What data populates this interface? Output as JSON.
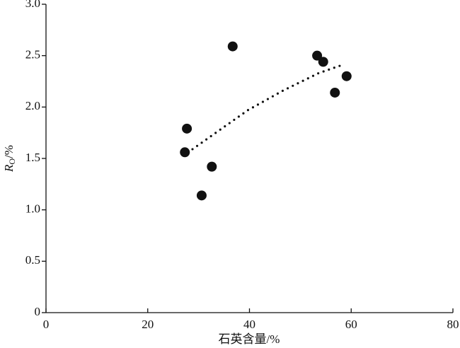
{
  "chart_data": {
    "type": "scatter",
    "xlabel": "石英含量/%",
    "ylabel": {
      "main": "R",
      "sub": "O",
      "unit": "/%"
    },
    "x": [
      27.3,
      27.7,
      30.6,
      32.6,
      36.7,
      53.3,
      54.5,
      59.1,
      56.8
    ],
    "values": [
      1.56,
      1.79,
      1.14,
      1.42,
      2.59,
      2.5,
      2.44,
      2.3,
      2.14
    ],
    "color": "#111111",
    "trendline": {
      "x": [
        28.8,
        39.7,
        46.6,
        53.6,
        58.3
      ],
      "values": [
        1.59,
        1.97,
        2.16,
        2.33,
        2.41
      ]
    },
    "xlim": [
      0,
      80
    ],
    "ylim": [
      0,
      3
    ],
    "xticks": [
      0,
      20,
      40,
      60,
      80
    ],
    "yticks": [
      0,
      0.5,
      {
        "value": 1,
        "label": "1.0"
      },
      1.5,
      {
        "value": 2,
        "label": "2.0"
      },
      2.5,
      {
        "value": 3,
        "label": "3.0"
      }
    ],
    "grid": false
  }
}
